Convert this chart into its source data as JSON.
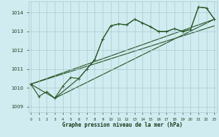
{
  "xlabel": "Graphe pression niveau de la mer (hPa)",
  "background_color": "#d0ecf0",
  "grid_color": "#a8c8cc",
  "line_color": "#2d5a2d",
  "text_color": "#1a3a1a",
  "ylim": [
    1008.7,
    1014.6
  ],
  "xlim": [
    -0.3,
    23.3
  ],
  "yticks": [
    1009,
    1010,
    1011,
    1012,
    1013,
    1014
  ],
  "xticks": [
    0,
    1,
    2,
    3,
    4,
    5,
    6,
    7,
    8,
    9,
    10,
    11,
    12,
    13,
    14,
    15,
    16,
    17,
    18,
    19,
    20,
    21,
    22,
    23
  ],
  "line1_x": [
    0,
    1,
    2,
    3,
    4,
    5,
    6,
    7,
    8,
    9,
    10,
    11,
    12,
    13,
    14,
    15,
    16,
    17,
    18,
    19,
    20,
    21,
    22,
    23
  ],
  "line1_y": [
    1010.2,
    1009.55,
    1009.8,
    1009.45,
    1010.1,
    1010.55,
    1010.5,
    1011.0,
    1011.5,
    1012.6,
    1013.3,
    1013.4,
    1013.35,
    1013.65,
    1013.45,
    1013.25,
    1013.0,
    1013.0,
    1013.15,
    1013.0,
    1013.1,
    1014.3,
    1014.25,
    1013.65
  ],
  "line2_x": [
    0,
    3,
    6,
    7,
    8,
    9,
    10,
    11,
    12,
    13,
    14,
    15,
    16,
    17,
    18,
    19,
    20,
    21,
    22,
    23
  ],
  "line2_y": [
    1010.2,
    1009.45,
    1010.5,
    1011.0,
    1011.5,
    1012.6,
    1013.3,
    1013.4,
    1013.35,
    1013.65,
    1013.45,
    1013.25,
    1013.0,
    1013.0,
    1013.15,
    1013.0,
    1013.1,
    1014.3,
    1014.25,
    1013.65
  ],
  "line3_x": [
    0,
    23
  ],
  "line3_y": [
    1010.2,
    1013.65
  ],
  "line4_x": [
    3,
    23
  ],
  "line4_y": [
    1009.45,
    1013.65
  ],
  "marker_size": 2.5,
  "line_width": 0.9
}
